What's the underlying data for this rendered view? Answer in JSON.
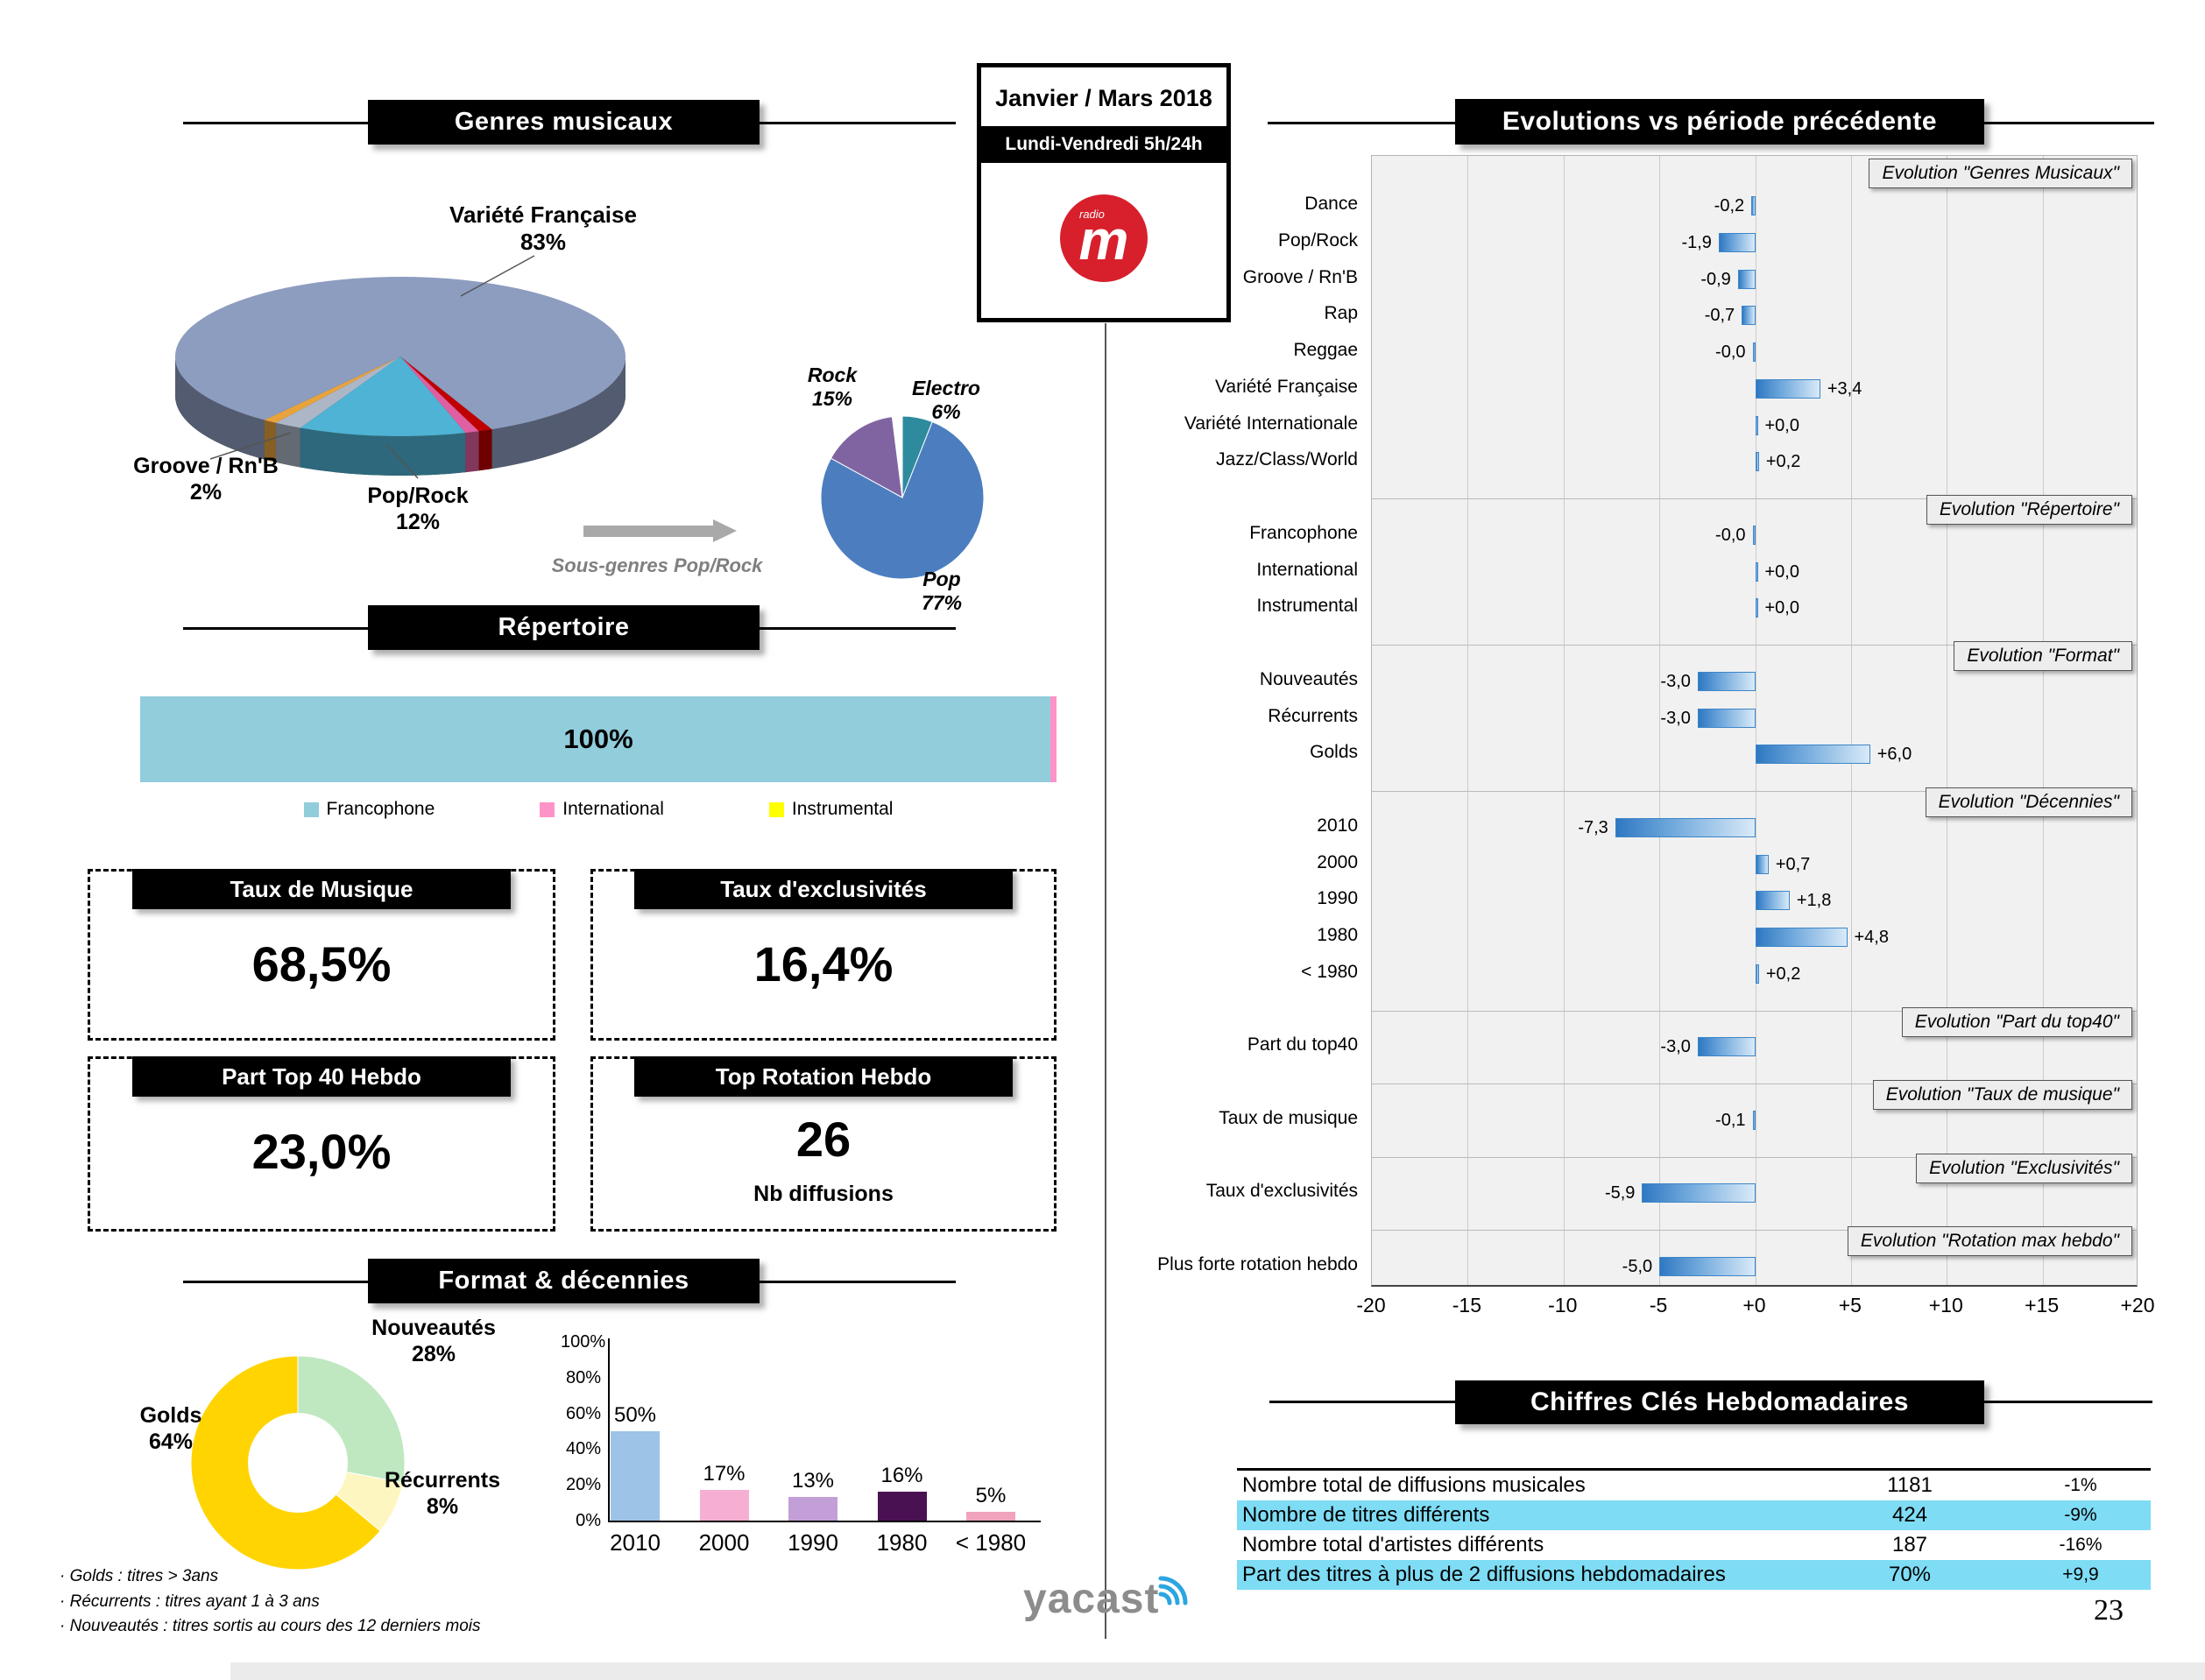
{
  "page_number": "23",
  "period": {
    "title": "Janvier / Mars 2018",
    "schedule": "Lundi-Vendredi 5h/24h",
    "station_letter": "m",
    "station_sub": "radio"
  },
  "headers": {
    "genres": "Genres musicaux",
    "repertoire": "Répertoire",
    "format": "Format & décennies",
    "evolutions": "Evolutions vs période précédente",
    "chiffres": "Chiffres Clés Hebdomadaires"
  },
  "kpis": [
    {
      "title": "Taux de Musique",
      "value": "68,5%"
    },
    {
      "title": "Taux  d'exclusivités",
      "value": "16,4%"
    },
    {
      "title": "Part Top 40 Hebdo",
      "value": "23,0%"
    },
    {
      "title": "Top Rotation Hebdo",
      "value": "26",
      "note": "Nb diffusions"
    }
  ],
  "footnotes": [
    "· Golds : titres > 3ans",
    "· Récurrents : titres ayant 1 à 3 ans",
    "· Nouveautés  : titres sortis au cours des 12 derniers mois"
  ],
  "brand": "yacast",
  "chart_data": [
    {
      "id": "genres",
      "type": "pie",
      "title": "Genres musicaux",
      "slices": [
        {
          "label": "Variété Française",
          "value": 83,
          "color": "#8D9DC0"
        },
        {
          "label": "Pop/Rock",
          "value": 12,
          "color": "#4FB3D5"
        },
        {
          "label": "Groove / Rn'B",
          "value": 2,
          "color": "#ADB6C6"
        }
      ],
      "unlabeled_other_pct": 3,
      "callouts": [
        {
          "name": "Variété Française",
          "pct": "83%"
        },
        {
          "name": "Pop/Rock",
          "pct": "12%"
        },
        {
          "name": "Groove / Rn'B",
          "pct": "2%"
        }
      ]
    },
    {
      "id": "subgenres",
      "type": "pie",
      "title": "Sous-genres Pop/Rock",
      "slices": [
        {
          "label": "Electro",
          "value": 6,
          "color": "#2E8B9E"
        },
        {
          "label": "Pop",
          "value": 77,
          "color": "#4C7EBF"
        },
        {
          "label": "Rock",
          "value": 15,
          "color": "#8064A2"
        }
      ],
      "callouts": [
        {
          "name": "Rock",
          "pct": "15%"
        },
        {
          "name": "Electro",
          "pct": "6%"
        },
        {
          "name": "Pop",
          "pct": "77%"
        }
      ]
    },
    {
      "id": "repertoire",
      "type": "bar",
      "stacked": true,
      "title": "Répertoire",
      "categories": [
        "Francophone",
        "International",
        "Instrumental"
      ],
      "values": [
        100,
        0,
        0
      ],
      "bar_label": "100%",
      "legend": [
        {
          "label": "Francophone",
          "color": "#92CDDC"
        },
        {
          "label": "International",
          "color": "#FF93C8"
        },
        {
          "label": "Instrumental",
          "color": "#FFFF00"
        }
      ]
    },
    {
      "id": "format",
      "type": "pie",
      "donut": true,
      "title": "Format & décennies",
      "slices": [
        {
          "label": "Nouveautés",
          "value": 28,
          "color": "#BFE8C0"
        },
        {
          "label": "Récurrents",
          "value": 8,
          "color": "#FEF6C0"
        },
        {
          "label": "Golds",
          "value": 64,
          "color": "#FFD400"
        }
      ],
      "callouts": [
        {
          "name": "Nouveautés",
          "pct": "28%"
        },
        {
          "name": "Golds",
          "pct": "64%"
        },
        {
          "name": "Récurrents",
          "pct": "8%"
        }
      ]
    },
    {
      "id": "decades",
      "type": "bar",
      "categories": [
        "2010",
        "2000",
        "1990",
        "1980",
        "< 1980"
      ],
      "values": [
        50,
        17,
        13,
        16,
        5
      ],
      "value_labels": [
        "50%",
        "17%",
        "13%",
        "16%",
        "5%"
      ],
      "colors": [
        "#9DC3E6",
        "#F7AED3",
        "#C39FD8",
        "#4A1152",
        "#F1A3BE"
      ],
      "y_ticks": [
        "100%",
        "80%",
        "60%",
        "40%",
        "20%",
        "0%"
      ],
      "ylim": [
        0,
        100
      ]
    },
    {
      "id": "evolutions",
      "type": "bar",
      "orientation": "horizontal",
      "title": "Evolutions vs période précédente",
      "xlim": [
        -20,
        20
      ],
      "x_ticks": [
        "-20",
        "-15",
        "-10",
        "-5",
        "+0",
        "+5",
        "+10",
        "+15",
        "+20"
      ],
      "groups": [
        {
          "section": "Evolution \"Genres Musicaux\"",
          "rows": [
            {
              "label": "Dance",
              "value": -0.2,
              "text": "-0,2"
            },
            {
              "label": "Pop/Rock",
              "value": -1.9,
              "text": "-1,9"
            },
            {
              "label": "Groove / Rn'B",
              "value": -0.9,
              "text": "-0,9"
            },
            {
              "label": "Rap",
              "value": -0.7,
              "text": "-0,7"
            },
            {
              "label": "Reggae",
              "value": 0.0,
              "text": "-0,0"
            },
            {
              "label": "Variété Française",
              "value": 3.4,
              "text": "+3,4"
            },
            {
              "label": "Variété Internationale",
              "value": 0.0,
              "text": "+0,0"
            },
            {
              "label": "Jazz/Class/World",
              "value": 0.2,
              "text": "+0,2"
            }
          ]
        },
        {
          "section": "Evolution \"Répertoire\"",
          "rows": [
            {
              "label": "Francophone",
              "value": 0.0,
              "text": "-0,0"
            },
            {
              "label": "International",
              "value": 0.0,
              "text": "+0,0"
            },
            {
              "label": "Instrumental",
              "value": 0.0,
              "text": "+0,0"
            }
          ]
        },
        {
          "section": "Evolution \"Format\"",
          "rows": [
            {
              "label": "Nouveautés",
              "value": -3.0,
              "text": "-3,0"
            },
            {
              "label": "Récurrents",
              "value": -3.0,
              "text": "-3,0"
            },
            {
              "label": "Golds",
              "value": 6.0,
              "text": "+6,0"
            }
          ]
        },
        {
          "section": "Evolution \"Décennies\"",
          "rows": [
            {
              "label": "2010",
              "value": -7.3,
              "text": "-7,3"
            },
            {
              "label": "2000",
              "value": 0.7,
              "text": "+0,7"
            },
            {
              "label": "1990",
              "value": 1.8,
              "text": "+1,8"
            },
            {
              "label": "1980",
              "value": 4.8,
              "text": "+4,8"
            },
            {
              "label": "< 1980",
              "value": 0.2,
              "text": "+0,2"
            }
          ]
        },
        {
          "section": "Evolution \"Part du top40\"",
          "rows": [
            {
              "label": "Part du top40",
              "value": -3.0,
              "text": "-3,0"
            }
          ]
        },
        {
          "section": "Evolution \"Taux  de musique\"",
          "rows": [
            {
              "label": "Taux de musique",
              "value": -0.1,
              "text": "-0,1"
            }
          ]
        },
        {
          "section": "Evolution \"Exclusivités\"",
          "rows": [
            {
              "label": "Taux d'exclusivités",
              "value": -5.9,
              "text": "-5,9"
            }
          ]
        },
        {
          "section": "Evolution \"Rotation max hebdo\"",
          "rows": [
            {
              "label": "Plus forte rotation hebdo",
              "value": -5.0,
              "text": "-5,0"
            }
          ]
        }
      ]
    },
    {
      "id": "key_figures",
      "type": "table",
      "title": "Chiffres Clés Hebdomadaires",
      "rows": [
        {
          "label": "Nombre total de diffusions musicales",
          "value": "1181",
          "delta": "-1%"
        },
        {
          "label": "Nombre de titres différents",
          "value": "424",
          "delta": "-9%"
        },
        {
          "label": "Nombre total d'artistes différents",
          "value": "187",
          "delta": "-16%"
        },
        {
          "label": "Part des titres à plus de 2 diffusions hebdomadaires",
          "value": "70%",
          "delta": "+9,9"
        }
      ]
    }
  ]
}
